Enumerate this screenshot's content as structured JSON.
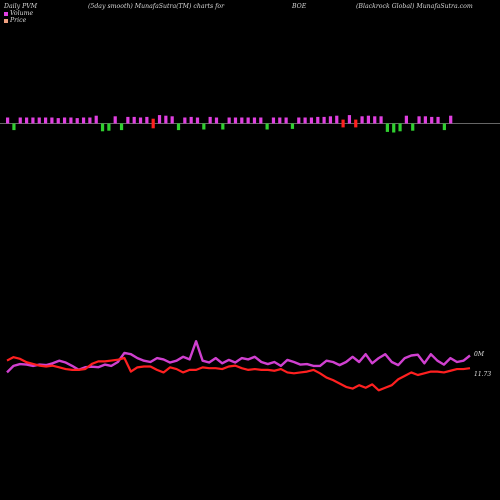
{
  "header": {
    "part1": "Daily PVM",
    "part2": "(5day smooth) MunafaSutra(TM) charts for",
    "part3": "BOE",
    "part4": "(Blackrock Global) MunafaSutra.com"
  },
  "legend": {
    "volume_label": "Volume",
    "price_label": "Price",
    "volume_color": "#e040e0",
    "price_color": "#f0a080"
  },
  "colors": {
    "volume_up": "#e040e0",
    "volume_down": "#30d030",
    "volume_strong": "#ff2020",
    "volume_line": "#d040d0",
    "price_line": "#ff2020",
    "axis_line": "#888888"
  },
  "chart_data": [
    {
      "type": "bar",
      "title": "Volume",
      "colors_legend": [
        "up",
        "down",
        "strong"
      ],
      "values": [
        {
          "v": 1.0,
          "c": "up"
        },
        {
          "v": 1.1,
          "c": "down"
        },
        {
          "v": 1.0,
          "c": "up"
        },
        {
          "v": 1.0,
          "c": "up"
        },
        {
          "v": 1.0,
          "c": "up"
        },
        {
          "v": 1.0,
          "c": "up"
        },
        {
          "v": 1.0,
          "c": "up"
        },
        {
          "v": 1.0,
          "c": "up"
        },
        {
          "v": 0.9,
          "c": "up"
        },
        {
          "v": 1.0,
          "c": "up"
        },
        {
          "v": 1.0,
          "c": "up"
        },
        {
          "v": 0.9,
          "c": "up"
        },
        {
          "v": 1.0,
          "c": "up"
        },
        {
          "v": 1.0,
          "c": "up"
        },
        {
          "v": 1.3,
          "c": "up"
        },
        {
          "v": 1.3,
          "c": "down"
        },
        {
          "v": 1.2,
          "c": "down"
        },
        {
          "v": 1.2,
          "c": "up"
        },
        {
          "v": 1.1,
          "c": "down"
        },
        {
          "v": 1.1,
          "c": "up"
        },
        {
          "v": 1.1,
          "c": "up"
        },
        {
          "v": 1.0,
          "c": "up"
        },
        {
          "v": 1.1,
          "c": "up"
        },
        {
          "v": 1.6,
          "c": "strong"
        },
        {
          "v": 1.4,
          "c": "up"
        },
        {
          "v": 1.3,
          "c": "up"
        },
        {
          "v": 1.2,
          "c": "up"
        },
        {
          "v": 1.1,
          "c": "down"
        },
        {
          "v": 1.0,
          "c": "up"
        },
        {
          "v": 1.1,
          "c": "up"
        },
        {
          "v": 1.0,
          "c": "up"
        },
        {
          "v": 1.0,
          "c": "down"
        },
        {
          "v": 1.1,
          "c": "up"
        },
        {
          "v": 1.0,
          "c": "up"
        },
        {
          "v": 1.0,
          "c": "down"
        },
        {
          "v": 1.0,
          "c": "up"
        },
        {
          "v": 1.0,
          "c": "up"
        },
        {
          "v": 1.0,
          "c": "up"
        },
        {
          "v": 1.0,
          "c": "up"
        },
        {
          "v": 1.0,
          "c": "up"
        },
        {
          "v": 1.0,
          "c": "up"
        },
        {
          "v": 1.0,
          "c": "down"
        },
        {
          "v": 1.0,
          "c": "up"
        },
        {
          "v": 1.0,
          "c": "up"
        },
        {
          "v": 1.0,
          "c": "up"
        },
        {
          "v": 0.9,
          "c": "down"
        },
        {
          "v": 1.0,
          "c": "up"
        },
        {
          "v": 1.0,
          "c": "up"
        },
        {
          "v": 1.0,
          "c": "up"
        },
        {
          "v": 1.1,
          "c": "up"
        },
        {
          "v": 1.1,
          "c": "up"
        },
        {
          "v": 1.2,
          "c": "up"
        },
        {
          "v": 1.3,
          "c": "up"
        },
        {
          "v": 1.3,
          "c": "strong"
        },
        {
          "v": 1.4,
          "c": "up"
        },
        {
          "v": 1.3,
          "c": "strong"
        },
        {
          "v": 1.2,
          "c": "up"
        },
        {
          "v": 1.3,
          "c": "up"
        },
        {
          "v": 1.2,
          "c": "up"
        },
        {
          "v": 1.2,
          "c": "up"
        },
        {
          "v": 1.4,
          "c": "down"
        },
        {
          "v": 1.5,
          "c": "down"
        },
        {
          "v": 1.3,
          "c": "down"
        },
        {
          "v": 1.3,
          "c": "up"
        },
        {
          "v": 1.2,
          "c": "down"
        },
        {
          "v": 1.2,
          "c": "up"
        },
        {
          "v": 1.2,
          "c": "up"
        },
        {
          "v": 1.1,
          "c": "up"
        },
        {
          "v": 1.1,
          "c": "up"
        },
        {
          "v": 1.1,
          "c": "down"
        },
        {
          "v": 1.3,
          "c": "up"
        }
      ]
    },
    {
      "type": "line",
      "title": "Volume line",
      "right_label": "0M",
      "values": [
        1.0,
        3.5,
        4.2,
        4.0,
        3.5,
        4.0,
        3.8,
        4.5,
        5.5,
        4.8,
        3.5,
        2.0,
        3.0,
        3.2,
        3.0,
        4.0,
        3.5,
        5.0,
        8.5,
        8.0,
        6.5,
        5.5,
        5.0,
        6.5,
        6.0,
        4.8,
        5.5,
        7.0,
        6.0,
        13.0,
        5.5,
        4.8,
        6.5,
        4.5,
        5.8,
        4.8,
        6.5,
        6.0,
        7.0,
        5.0,
        4.2,
        5.0,
        3.5,
        5.8,
        5.0,
        4.0,
        4.2,
        3.5,
        3.5,
        5.5,
        5.0,
        3.8,
        5.0,
        7.0,
        5.0,
        8.0,
        4.5,
        6.5,
        8.0,
        5.0,
        3.8,
        6.5,
        7.5,
        7.8,
        4.5,
        8.0,
        5.5,
        4.0,
        6.5,
        5.0,
        5.5,
        7.5
      ]
    },
    {
      "type": "line",
      "title": "Price",
      "right_label": "11.73",
      "values": [
        12.1,
        12.14,
        12.12,
        12.08,
        12.06,
        12.04,
        12.03,
        12.04,
        12.02,
        12.0,
        11.99,
        11.99,
        12.0,
        12.06,
        12.09,
        12.09,
        12.1,
        12.11,
        12.13,
        11.97,
        12.02,
        12.03,
        12.03,
        11.99,
        11.96,
        12.02,
        12.0,
        11.96,
        11.99,
        11.99,
        12.02,
        12.01,
        12.01,
        12.0,
        12.03,
        12.04,
        12.01,
        11.99,
        12.0,
        11.99,
        11.99,
        11.98,
        12.0,
        11.96,
        11.95,
        11.96,
        11.97,
        11.99,
        11.95,
        11.9,
        11.87,
        11.83,
        11.79,
        11.77,
        11.81,
        11.78,
        11.82,
        11.75,
        11.78,
        11.81,
        11.88,
        11.92,
        11.96,
        11.93,
        11.95,
        11.97,
        11.97,
        11.96,
        11.98,
        12.0,
        12.0,
        12.01
      ]
    }
  ]
}
